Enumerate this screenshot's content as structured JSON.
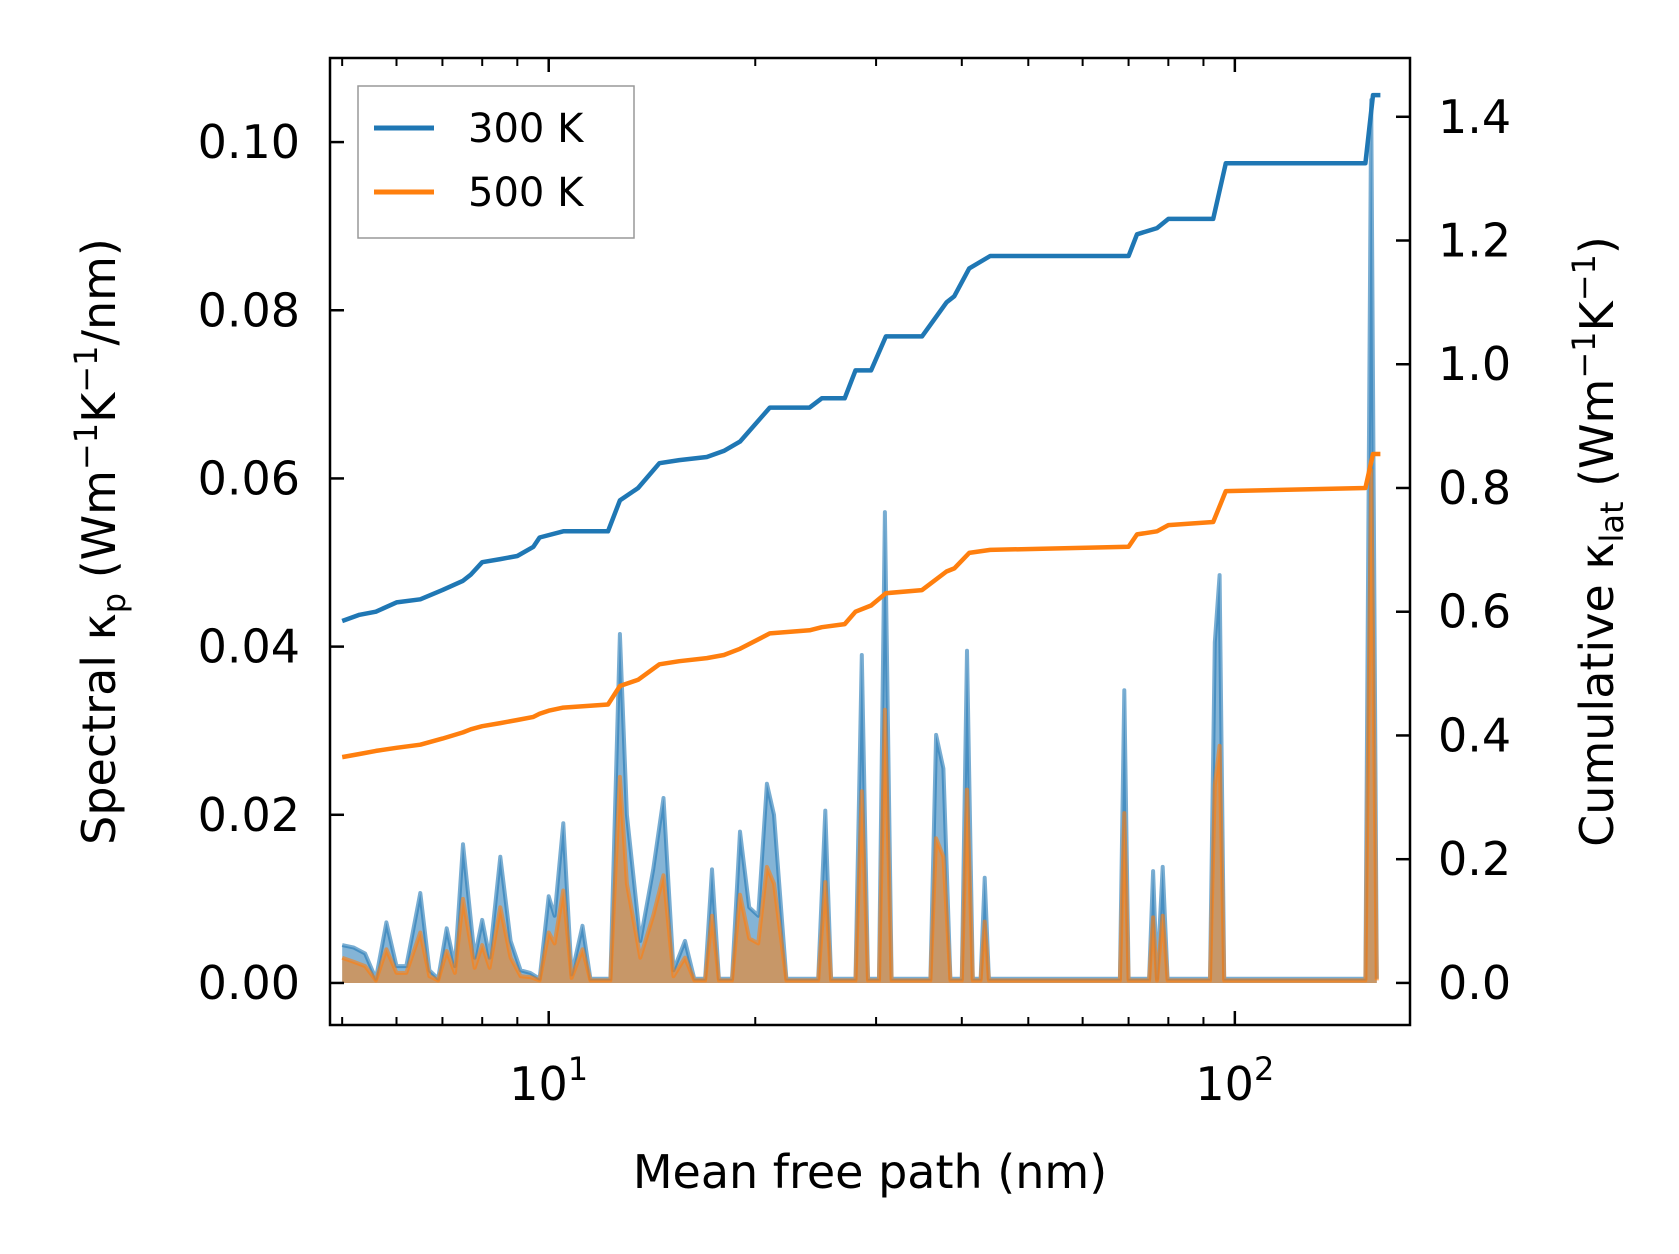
{
  "chart_data": {
    "type": "line",
    "xscale": "log",
    "xlim": [
      4.8,
      180
    ],
    "ylim_left": [
      -0.005,
      0.11
    ],
    "ylim_right": [
      -0.068,
      1.495
    ],
    "xlabel": "Mean free path (nm)",
    "ylabel_left": {
      "pre": "Spectral κ",
      "sub": "p",
      "post": " (Wm",
      "sup1": "−1",
      "mid": "K",
      "sup2": "−1",
      "end": "/nm)"
    },
    "ylabel_right": {
      "pre": "Cumulative κ",
      "sub": "lat",
      "post": " (Wm",
      "sup1": "−1",
      "mid": "K",
      "sup2": "−1",
      "end": ")"
    },
    "x_ticks": [
      {
        "value": 10,
        "base": "10",
        "exp": "1"
      },
      {
        "value": 100,
        "base": "10",
        "exp": "2"
      }
    ],
    "y_left_ticks": [
      {
        "value": 0.0,
        "label": "0.00"
      },
      {
        "value": 0.02,
        "label": "0.02"
      },
      {
        "value": 0.04,
        "label": "0.04"
      },
      {
        "value": 0.06,
        "label": "0.06"
      },
      {
        "value": 0.08,
        "label": "0.08"
      },
      {
        "value": 0.1,
        "label": "0.10"
      }
    ],
    "y_right_ticks": [
      {
        "value": 0.0,
        "label": "0.0"
      },
      {
        "value": 0.2,
        "label": "0.2"
      },
      {
        "value": 0.4,
        "label": "0.4"
      },
      {
        "value": 0.6,
        "label": "0.6"
      },
      {
        "value": 0.8,
        "label": "0.8"
      },
      {
        "value": 1.0,
        "label": "1.0"
      },
      {
        "value": 1.2,
        "label": "1.2"
      },
      {
        "value": 1.4,
        "label": "1.4"
      }
    ],
    "legend": {
      "position": "upper-left",
      "entries": [
        {
          "name": "300 K",
          "color": "#1f77b4"
        },
        {
          "name": "500 K",
          "color": "#ff7f0e"
        }
      ]
    },
    "series": [
      {
        "name": "300 K",
        "color": "#1f77b4",
        "cumulative": [
          [
            5.0,
            0.585
          ],
          [
            5.3,
            0.595
          ],
          [
            5.6,
            0.6
          ],
          [
            6.0,
            0.615
          ],
          [
            6.5,
            0.62
          ],
          [
            7.0,
            0.635
          ],
          [
            7.5,
            0.65
          ],
          [
            7.7,
            0.66
          ],
          [
            8.0,
            0.68
          ],
          [
            8.5,
            0.685
          ],
          [
            9.0,
            0.69
          ],
          [
            9.5,
            0.705
          ],
          [
            9.7,
            0.72
          ],
          [
            10.5,
            0.73
          ],
          [
            12.2,
            0.73
          ],
          [
            12.7,
            0.78
          ],
          [
            13.5,
            0.8
          ],
          [
            14.5,
            0.84
          ],
          [
            15.5,
            0.845
          ],
          [
            17.0,
            0.85
          ],
          [
            18.0,
            0.86
          ],
          [
            19.0,
            0.875
          ],
          [
            21.0,
            0.93
          ],
          [
            24.0,
            0.93
          ],
          [
            25.0,
            0.945
          ],
          [
            27.0,
            0.945
          ],
          [
            28.0,
            0.99
          ],
          [
            29.5,
            0.99
          ],
          [
            31.0,
            1.045
          ],
          [
            35.0,
            1.045
          ],
          [
            38.0,
            1.1
          ],
          [
            39.0,
            1.11
          ],
          [
            41.0,
            1.155
          ],
          [
            44.0,
            1.175
          ],
          [
            70.0,
            1.175
          ],
          [
            72.0,
            1.21
          ],
          [
            77.0,
            1.22
          ],
          [
            80.0,
            1.235
          ],
          [
            93.0,
            1.235
          ],
          [
            97.0,
            1.325
          ],
          [
            155.0,
            1.325
          ],
          [
            159.0,
            1.435
          ],
          [
            163.0,
            1.435
          ]
        ],
        "spectral": [
          [
            5.0,
            0.0045
          ],
          [
            5.2,
            0.0042
          ],
          [
            5.4,
            0.0035
          ],
          [
            5.6,
            0.0005
          ],
          [
            5.8,
            0.0072
          ],
          [
            6.0,
            0.002
          ],
          [
            6.2,
            0.002
          ],
          [
            6.5,
            0.0107
          ],
          [
            6.7,
            0.0015
          ],
          [
            6.9,
            0.0005
          ],
          [
            7.1,
            0.0065
          ],
          [
            7.3,
            0.002
          ],
          [
            7.5,
            0.0165
          ],
          [
            7.8,
            0.003
          ],
          [
            8.0,
            0.0075
          ],
          [
            8.2,
            0.003
          ],
          [
            8.5,
            0.015
          ],
          [
            8.8,
            0.005
          ],
          [
            9.1,
            0.0015
          ],
          [
            9.4,
            0.0012
          ],
          [
            9.7,
            0.0005
          ],
          [
            10.0,
            0.0103
          ],
          [
            10.2,
            0.008
          ],
          [
            10.5,
            0.019
          ],
          [
            10.8,
            0.001
          ],
          [
            11.2,
            0.0068
          ],
          [
            11.5,
            0.0005
          ],
          [
            12.3,
            0.0005
          ],
          [
            12.7,
            0.0415
          ],
          [
            13.0,
            0.02
          ],
          [
            13.6,
            0.005
          ],
          [
            14.2,
            0.0135
          ],
          [
            14.7,
            0.022
          ],
          [
            15.2,
            0.0015
          ],
          [
            15.8,
            0.005
          ],
          [
            16.3,
            0.0005
          ],
          [
            16.9,
            0.0005
          ],
          [
            17.3,
            0.0135
          ],
          [
            17.7,
            0.0005
          ],
          [
            18.5,
            0.0005
          ],
          [
            19.0,
            0.018
          ],
          [
            19.6,
            0.009
          ],
          [
            20.2,
            0.008
          ],
          [
            20.8,
            0.0237
          ],
          [
            21.3,
            0.02
          ],
          [
            22.2,
            0.0005
          ],
          [
            24.7,
            0.0005
          ],
          [
            25.3,
            0.0205
          ],
          [
            25.8,
            0.0005
          ],
          [
            28.0,
            0.0005
          ],
          [
            28.6,
            0.039
          ],
          [
            29.2,
            0.0005
          ],
          [
            30.3,
            0.0005
          ],
          [
            30.9,
            0.056
          ],
          [
            31.6,
            0.0005
          ],
          [
            36.0,
            0.0005
          ],
          [
            36.7,
            0.0295
          ],
          [
            37.6,
            0.0255
          ],
          [
            38.5,
            0.0005
          ],
          [
            40.0,
            0.0005
          ],
          [
            40.7,
            0.0395
          ],
          [
            41.5,
            0.0005
          ],
          [
            42.6,
            0.0005
          ],
          [
            43.2,
            0.0125
          ],
          [
            43.8,
            0.0005
          ],
          [
            68.0,
            0.0005
          ],
          [
            69.0,
            0.0348
          ],
          [
            70.0,
            0.0005
          ],
          [
            75.0,
            0.0005
          ],
          [
            76.0,
            0.0133
          ],
          [
            77.0,
            0.0005
          ],
          [
            78.5,
            0.0138
          ],
          [
            79.8,
            0.0005
          ],
          [
            92.0,
            0.0005
          ],
          [
            93.5,
            0.0405
          ],
          [
            95.0,
            0.0485
          ],
          [
            96.5,
            0.0005
          ],
          [
            152.0,
            0.0005
          ],
          [
            155.0,
            0.0005
          ],
          [
            158.0,
            0.105
          ],
          [
            161.0,
            0.0005
          ]
        ]
      },
      {
        "name": "500 K",
        "color": "#ff7f0e",
        "cumulative": [
          [
            5.0,
            0.365
          ],
          [
            5.3,
            0.37
          ],
          [
            5.6,
            0.375
          ],
          [
            6.0,
            0.38
          ],
          [
            6.5,
            0.385
          ],
          [
            7.0,
            0.395
          ],
          [
            7.5,
            0.405
          ],
          [
            7.7,
            0.41
          ],
          [
            8.0,
            0.415
          ],
          [
            8.5,
            0.42
          ],
          [
            9.0,
            0.425
          ],
          [
            9.5,
            0.43
          ],
          [
            9.7,
            0.435
          ],
          [
            10.0,
            0.44
          ],
          [
            10.5,
            0.445
          ],
          [
            12.2,
            0.45
          ],
          [
            12.7,
            0.48
          ],
          [
            13.5,
            0.49
          ],
          [
            14.5,
            0.515
          ],
          [
            15.5,
            0.52
          ],
          [
            17.0,
            0.525
          ],
          [
            18.0,
            0.53
          ],
          [
            19.0,
            0.54
          ],
          [
            21.0,
            0.565
          ],
          [
            24.0,
            0.57
          ],
          [
            25.0,
            0.575
          ],
          [
            27.0,
            0.58
          ],
          [
            28.0,
            0.6
          ],
          [
            29.5,
            0.61
          ],
          [
            31.0,
            0.63
          ],
          [
            35.0,
            0.635
          ],
          [
            38.0,
            0.665
          ],
          [
            39.0,
            0.67
          ],
          [
            41.0,
            0.695
          ],
          [
            44.0,
            0.7
          ],
          [
            70.0,
            0.705
          ],
          [
            72.0,
            0.725
          ],
          [
            77.0,
            0.73
          ],
          [
            80.0,
            0.74
          ],
          [
            93.0,
            0.745
          ],
          [
            97.0,
            0.795
          ],
          [
            155.0,
            0.8
          ],
          [
            159.0,
            0.855
          ],
          [
            163.0,
            0.855
          ]
        ],
        "spectral": [
          [
            5.0,
            0.003
          ],
          [
            5.2,
            0.0025
          ],
          [
            5.4,
            0.002
          ],
          [
            5.6,
            0.0003
          ],
          [
            5.8,
            0.004
          ],
          [
            6.0,
            0.0012
          ],
          [
            6.2,
            0.0012
          ],
          [
            6.5,
            0.006
          ],
          [
            6.7,
            0.0008
          ],
          [
            6.9,
            0.0003
          ],
          [
            7.1,
            0.0038
          ],
          [
            7.3,
            0.0012
          ],
          [
            7.5,
            0.01
          ],
          [
            7.8,
            0.0018
          ],
          [
            8.0,
            0.0045
          ],
          [
            8.2,
            0.0018
          ],
          [
            8.5,
            0.009
          ],
          [
            8.8,
            0.003
          ],
          [
            9.1,
            0.0008
          ],
          [
            9.4,
            0.0007
          ],
          [
            9.7,
            0.0003
          ],
          [
            10.0,
            0.006
          ],
          [
            10.2,
            0.0047
          ],
          [
            10.5,
            0.011
          ],
          [
            10.8,
            0.0006
          ],
          [
            11.2,
            0.004
          ],
          [
            11.5,
            0.0003
          ],
          [
            12.3,
            0.0003
          ],
          [
            12.7,
            0.0245
          ],
          [
            13.0,
            0.0118
          ],
          [
            13.6,
            0.003
          ],
          [
            14.2,
            0.008
          ],
          [
            14.7,
            0.0128
          ],
          [
            15.2,
            0.0008
          ],
          [
            15.8,
            0.003
          ],
          [
            16.3,
            0.0003
          ],
          [
            16.9,
            0.0003
          ],
          [
            17.3,
            0.008
          ],
          [
            17.7,
            0.0003
          ],
          [
            18.5,
            0.0003
          ],
          [
            19.0,
            0.0105
          ],
          [
            19.6,
            0.0053
          ],
          [
            20.2,
            0.0047
          ],
          [
            20.8,
            0.0138
          ],
          [
            21.3,
            0.0118
          ],
          [
            22.2,
            0.0003
          ],
          [
            24.7,
            0.0003
          ],
          [
            25.3,
            0.012
          ],
          [
            25.8,
            0.0003
          ],
          [
            28.0,
            0.0003
          ],
          [
            28.6,
            0.0228
          ],
          [
            29.2,
            0.0003
          ],
          [
            30.3,
            0.0003
          ],
          [
            30.9,
            0.0325
          ],
          [
            31.6,
            0.0003
          ],
          [
            36.0,
            0.0003
          ],
          [
            36.7,
            0.0172
          ],
          [
            37.6,
            0.015
          ],
          [
            38.5,
            0.0003
          ],
          [
            40.0,
            0.0003
          ],
          [
            40.7,
            0.023
          ],
          [
            41.5,
            0.0003
          ],
          [
            42.6,
            0.0003
          ],
          [
            43.2,
            0.0073
          ],
          [
            43.8,
            0.0003
          ],
          [
            68.0,
            0.0003
          ],
          [
            69.0,
            0.0202
          ],
          [
            70.0,
            0.0003
          ],
          [
            75.0,
            0.0003
          ],
          [
            76.0,
            0.0078
          ],
          [
            77.0,
            0.0003
          ],
          [
            78.5,
            0.008
          ],
          [
            79.8,
            0.0003
          ],
          [
            92.0,
            0.0003
          ],
          [
            93.5,
            0.0235
          ],
          [
            95.0,
            0.0282
          ],
          [
            96.5,
            0.0003
          ],
          [
            152.0,
            0.0003
          ],
          [
            155.0,
            0.0003
          ],
          [
            158.0,
            0.061
          ],
          [
            161.0,
            0.0003
          ]
        ]
      }
    ]
  }
}
